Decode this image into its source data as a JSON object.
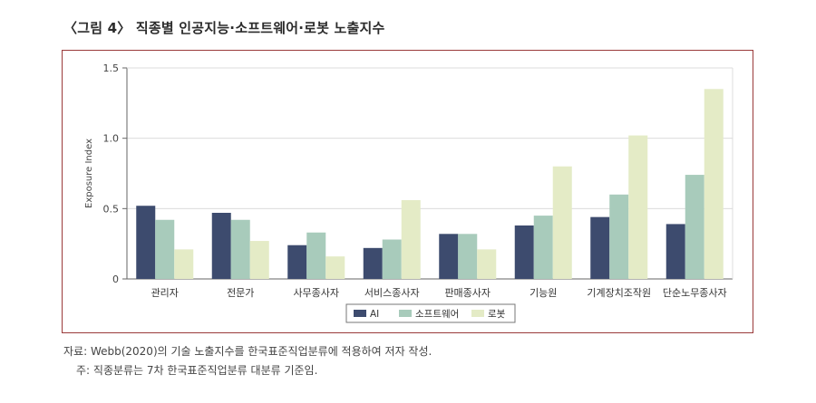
{
  "figure_title": "〈그림 4〉 직종별 인공지능·소프트웨어·로봇 노출지수",
  "colors": {
    "ai": "#3d4b6e",
    "software": "#a8cbbb",
    "robot": "#e4ebc6",
    "frame": "#9a3a3a"
  },
  "chart_data": {
    "type": "bar",
    "title": "",
    "xlabel": "",
    "ylabel": "Exposure Index",
    "ylim": [
      0,
      1.5
    ],
    "yticks": [
      "0",
      "0.5",
      "1.0",
      "1.5"
    ],
    "grid": true,
    "legend_placement": "bottom",
    "categories": [
      "관리자",
      "전문가",
      "사무종사자",
      "서비스종사자",
      "판매종사자",
      "기능원",
      "기계장치조작원",
      "단순노무종사자"
    ],
    "series": [
      {
        "name": "AI",
        "values": [
          0.52,
          0.47,
          0.24,
          0.22,
          0.32,
          0.38,
          0.44,
          0.39
        ]
      },
      {
        "name": "소프트웨어",
        "values": [
          0.42,
          0.42,
          0.33,
          0.28,
          0.32,
          0.45,
          0.6,
          0.74
        ]
      },
      {
        "name": "로봇",
        "values": [
          0.21,
          0.27,
          0.16,
          0.56,
          0.21,
          0.8,
          1.02,
          1.35
        ]
      }
    ]
  },
  "notes": {
    "source": "자료: Webb(2020)의 기술 노출지수를 한국표준직업분류에 적용하여 저자 작성.",
    "footnote": "주: 직종분류는 7차 한국표준직업분류 대분류 기준임."
  }
}
